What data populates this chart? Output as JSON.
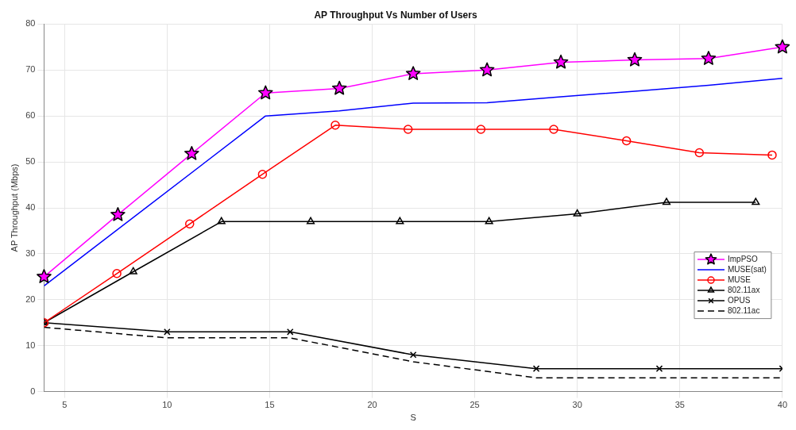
{
  "chart_data": {
    "type": "line",
    "title": "AP Throughput Vs Number of Users",
    "xlabel": "S",
    "ylabel": "AP Throughput (Mbps)",
    "xlim": [
      4,
      40
    ],
    "xticks": [
      5,
      10,
      15,
      20,
      25,
      30,
      35,
      40
    ],
    "ylim": [
      0,
      80
    ],
    "yticks": [
      0,
      10,
      20,
      30,
      40,
      50,
      60,
      70,
      80
    ],
    "grid": true,
    "legend": "right",
    "series": [
      {
        "name": "ImpPSO",
        "color": "#ff00ff",
        "marker": "star",
        "line_style": "solid",
        "x": [
          4,
          7.6,
          11.2,
          14.8,
          18.4,
          22,
          25.6,
          29.2,
          32.8,
          36.4,
          40
        ],
        "values": [
          25,
          38.5,
          51.8,
          65,
          66,
          69.2,
          70,
          71.7,
          72.2,
          72.5,
          75
        ]
      },
      {
        "name": "MUSE(sat)",
        "color": "#0000ff",
        "marker": "none",
        "line_style": "solid",
        "x": [
          4,
          14.8,
          18.4,
          22,
          25.6,
          29.2,
          32.8,
          36.4,
          40
        ],
        "values": [
          23,
          60,
          61.1,
          62.8,
          62.9,
          64.2,
          65.4,
          66.7,
          68.2
        ]
      },
      {
        "name": "MUSE",
        "color": "#ff0000",
        "marker": "circle",
        "line_style": "solid",
        "x": [
          4,
          7.55,
          11.1,
          14.65,
          18.2,
          21.75,
          25.3,
          28.85,
          32.4,
          35.95,
          39.5
        ],
        "values": [
          15,
          25.7,
          36.5,
          47.3,
          58,
          57.1,
          57.1,
          57.1,
          54.6,
          52,
          51.5
        ]
      },
      {
        "name": "802.11ax",
        "color": "#000000",
        "marker": "triangle",
        "line_style": "solid",
        "x": [
          4,
          8.35,
          12.65,
          17,
          21.35,
          25.7,
          30,
          34.35,
          38.7
        ],
        "values": [
          15,
          26.1,
          37,
          37,
          37,
          37,
          38.7,
          41.2,
          41.2
        ]
      },
      {
        "name": "OPUS",
        "color": "#000000",
        "marker": "cross",
        "line_style": "solid",
        "x": [
          4,
          10,
          16,
          22,
          28,
          34,
          40
        ],
        "values": [
          15,
          13,
          13,
          8,
          5,
          5,
          5
        ]
      },
      {
        "name": "802.11ac",
        "color": "#000000",
        "marker": "none",
        "line_style": "dashed",
        "x": [
          4,
          10,
          16,
          22,
          28,
          40
        ],
        "values": [
          14,
          11.7,
          11.7,
          6.5,
          3,
          3
        ]
      }
    ]
  }
}
